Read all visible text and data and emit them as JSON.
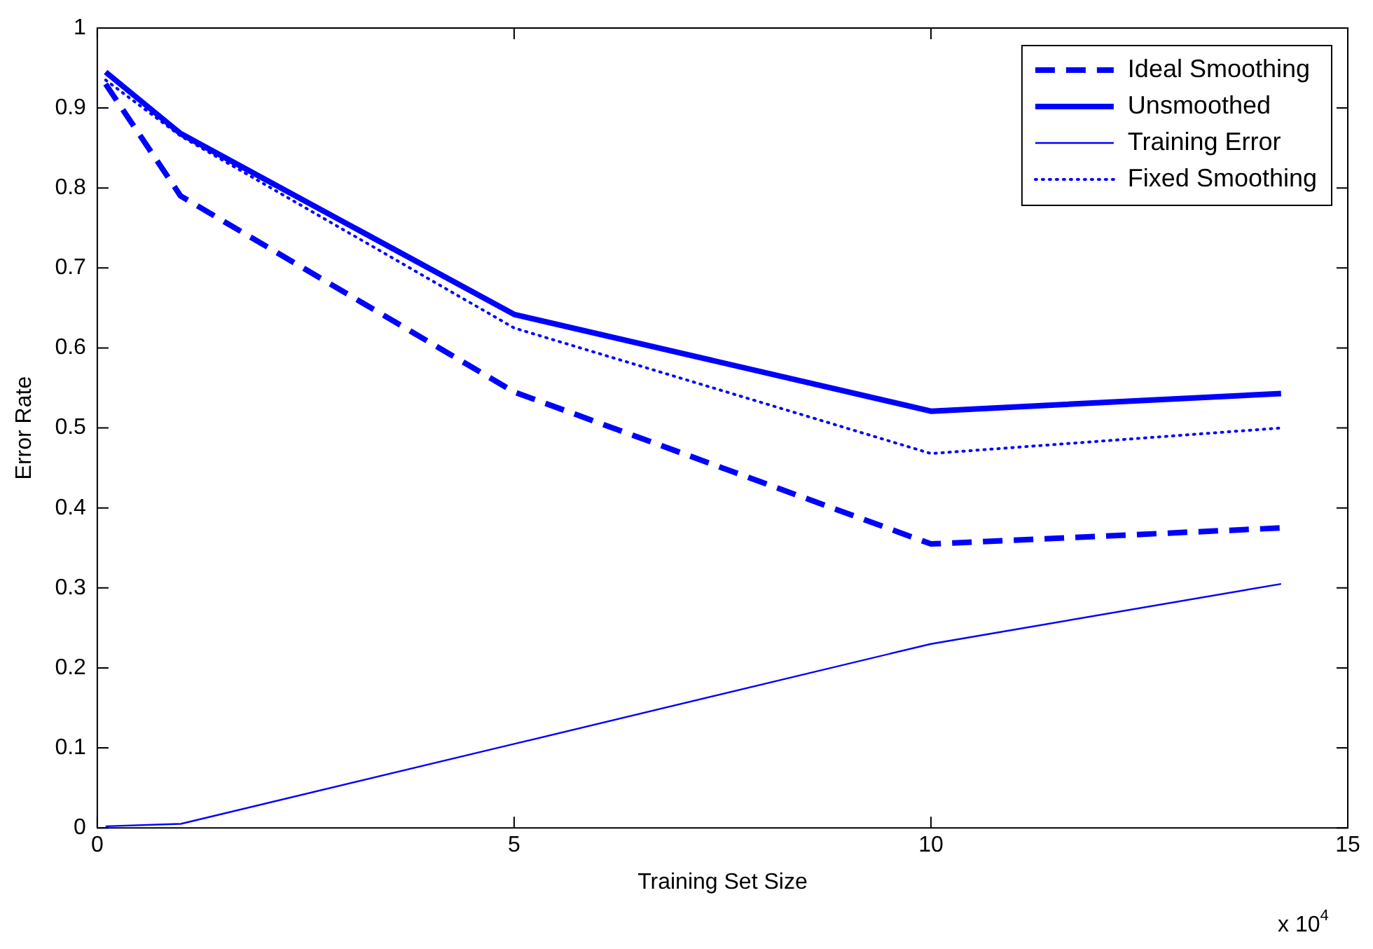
{
  "chart_data": {
    "type": "line",
    "xlabel": "Training Set Size",
    "ylabel": "Error Rate",
    "annotations": [
      "x 10$^{4}$"
    ],
    "xlim": [
      0,
      15
    ],
    "xticks": [
      0,
      5,
      10,
      15
    ],
    "ylim": [
      0,
      1
    ],
    "yticks": [
      0,
      0.1,
      0.2,
      0.3,
      0.4,
      0.5,
      0.6,
      0.7,
      0.8,
      0.9,
      1
    ],
    "grid": false,
    "legend": "top right",
    "marker": "none",
    "series": [
      {
        "name": "Ideal Smoothing",
        "color": "#0000ff",
        "line_style": "dashed",
        "x": [
          0.1,
          1,
          5,
          10,
          14.2
        ],
        "values": [
          0.93,
          0.79,
          0.545,
          0.355,
          0.375
        ]
      },
      {
        "name": "Unsmoothed",
        "color": "#0000ff",
        "line_style": "solid",
        "x": [
          0.1,
          1,
          5,
          10,
          14.2
        ],
        "values": [
          0.945,
          0.868,
          0.642,
          0.521,
          0.543
        ]
      },
      {
        "name": "Training Error",
        "color": "#0000ff",
        "line_style": "solid",
        "x": [
          0.1,
          1,
          5,
          10,
          14.2
        ],
        "values": [
          0.002,
          0.005,
          0.105,
          0.23,
          0.305
        ]
      },
      {
        "name": "Fixed Smoothing",
        "color": "#0000ff",
        "line_style": "dotted",
        "x": [
          0.1,
          1,
          5,
          10,
          14.2
        ],
        "values": [
          0.935,
          0.865,
          0.625,
          0.468,
          0.5
        ]
      }
    ]
  }
}
